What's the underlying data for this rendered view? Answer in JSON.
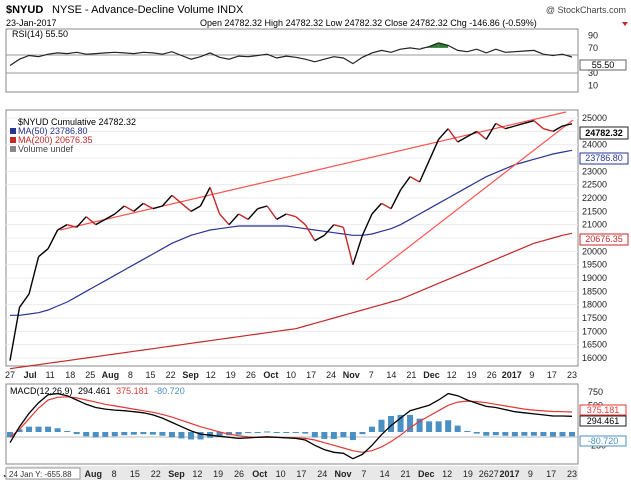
{
  "header": {
    "symbol": "$NYUD",
    "name": "NYSE - Advance-Decline Volume INDX",
    "date": "23-Jan-2017",
    "quote": "Open 24782.32  High 24782.32  Low 24782.32  Close 24782.32  Chg -146.86 (-0.59%)",
    "watermark": "@ StockCharts.com"
  },
  "rsi_panel": {
    "legend": "RSI(14) 55.50",
    "ticks": [
      "90",
      "70",
      "30",
      "10"
    ],
    "current_label": "55.50",
    "line_color": "#222222",
    "overbought_fill": "#2e7d32"
  },
  "price_panel": {
    "legend_main": "$NYUD Cumulative 24782.32",
    "legend_ma50": "MA(50) 23786.80",
    "legend_ma200": "MA(200) 20676.35",
    "legend_volume": "Volume undef",
    "ticks": [
      "25000",
      "24500",
      "24000",
      "23500",
      "23000",
      "22500",
      "22000",
      "21500",
      "21000",
      "20500",
      "20000",
      "19500",
      "19000",
      "18500",
      "18000",
      "17500",
      "17000",
      "16500",
      "16000"
    ],
    "last_label": "24782.32",
    "ma50_label": "23786.80",
    "ma200_label": "20676.35",
    "colors": {
      "ma50": "#283593",
      "ma200": "#c62828",
      "trendline": "#ff5252",
      "price_down": "#c62828"
    }
  },
  "macd_panel": {
    "legend_label": "MACD(12,26,9)",
    "legend_macd": "294.461",
    "legend_signal": "375.181",
    "legend_hist": "-80.720",
    "ticks": [
      "750",
      "500",
      "250",
      "-250"
    ],
    "signal_label": "375.181",
    "macd_label": "294.461",
    "hist_label": "-80.720",
    "colors": {
      "macd": "#000000",
      "signal": "#e53935",
      "histogram": "#4a90c2"
    }
  },
  "x_axis_top": [
    "27",
    "Jul",
    "11",
    "18",
    "25",
    "Aug",
    "8",
    "15",
    "22",
    "Sep",
    "12",
    "19",
    "26",
    "Oct",
    "10",
    "17",
    "24",
    "Nov",
    "7",
    "14",
    "21",
    "Dec",
    "12",
    "19",
    "26",
    "2017",
    "9",
    "17",
    "23"
  ],
  "x_axis_bottom": [
    "Jul",
    "11",
    "18",
    "25",
    "Aug",
    "8",
    "15",
    "22",
    "Sep",
    "12",
    "19",
    "26",
    "Oct",
    "10",
    "17",
    "24",
    "Nov",
    "7",
    "14",
    "21",
    "Dec",
    "12",
    "19",
    "2627",
    "2017",
    "9",
    "17",
    "23"
  ],
  "footer_label": "24 Jan Y: -655.88",
  "chart_data": [
    {
      "type": "line",
      "title": "$NYUD Cumulative",
      "series": [
        {
          "name": "$NYUD Cumulative",
          "values": [
            15900,
            17900,
            18400,
            19800,
            20100,
            20800,
            21000,
            20900,
            21300,
            21000,
            21200,
            21400,
            21700,
            21500,
            21800,
            21600,
            21700,
            22100,
            21800,
            21500,
            21700,
            22400,
            21400,
            21000,
            21400,
            21200,
            21600,
            21700,
            21200,
            21400,
            21300,
            21000,
            20400,
            20600,
            21000,
            20900,
            19500,
            20600,
            21400,
            21800,
            21600,
            22300,
            22800,
            22600,
            23400,
            24200,
            24600,
            24100,
            24300,
            24500,
            24200,
            24800,
            24600,
            24700,
            24800,
            24900,
            24600,
            24500,
            24700,
            24782
          ]
        },
        {
          "name": "MA(50)",
          "values": [
            17600,
            17600,
            17650,
            17700,
            17800,
            17950,
            18100,
            18300,
            18500,
            18700,
            18900,
            19100,
            19300,
            19500,
            19700,
            19900,
            20100,
            20300,
            20450,
            20600,
            20700,
            20800,
            20850,
            20900,
            20950,
            20950,
            20950,
            20950,
            20950,
            20950,
            20900,
            20850,
            20800,
            20750,
            20700,
            20650,
            20600,
            20600,
            20650,
            20750,
            20850,
            21000,
            21200,
            21400,
            21600,
            21800,
            22000,
            22200,
            22400,
            22600,
            22800,
            22950,
            23100,
            23250,
            23350,
            23450,
            23550,
            23650,
            23720,
            23787
          ]
        },
        {
          "name": "MA(200)",
          "values": [
            15600,
            15650,
            15700,
            15750,
            15800,
            15850,
            15900,
            15950,
            16000,
            16050,
            16100,
            16150,
            16200,
            16250,
            16300,
            16350,
            16400,
            16450,
            16500,
            16550,
            16600,
            16650,
            16700,
            16750,
            16800,
            16850,
            16900,
            16950,
            17000,
            17050,
            17100,
            17200,
            17300,
            17400,
            17500,
            17600,
            17700,
            17800,
            17900,
            18000,
            18100,
            18200,
            18350,
            18500,
            18650,
            18800,
            18950,
            19100,
            19250,
            19400,
            19550,
            19700,
            19850,
            20000,
            20150,
            20300,
            20400,
            20500,
            20600,
            20676
          ]
        }
      ],
      "ylim": [
        15700,
        25300
      ]
    },
    {
      "type": "line",
      "title": "RSI(14)",
      "series": [
        {
          "name": "RSI(14)",
          "values": [
            42,
            52,
            58,
            56,
            60,
            62,
            61,
            63,
            60,
            61,
            62,
            63,
            62,
            61,
            63,
            62,
            60,
            64,
            58,
            52,
            56,
            62,
            55,
            52,
            57,
            56,
            58,
            60,
            54,
            57,
            55,
            52,
            48,
            52,
            56,
            54,
            45,
            55,
            62,
            66,
            63,
            68,
            70,
            68,
            72,
            78,
            74,
            66,
            64,
            68,
            62,
            68,
            63,
            64,
            65,
            66,
            60,
            58,
            60,
            55.5
          ]
        }
      ],
      "ylim": [
        0,
        100
      ]
    },
    {
      "type": "line",
      "title": "MACD(12,26,9)",
      "series": [
        {
          "name": "MACD",
          "values": [
            -200,
            100,
            350,
            550,
            700,
            720,
            680,
            600,
            520,
            460,
            430,
            410,
            400,
            380,
            360,
            320,
            260,
            180,
            100,
            20,
            -40,
            -60,
            -80,
            -100,
            -120,
            -110,
            -100,
            -90,
            -100,
            -110,
            -120,
            -150,
            -250,
            -330,
            -380,
            -400,
            -500,
            -420,
            -250,
            -50,
            120,
            260,
            400,
            450,
            500,
            600,
            720,
            680,
            600,
            540,
            480,
            460,
            420,
            380,
            360,
            340,
            320,
            300,
            300,
            294.461
          ]
        },
        {
          "name": "Signal",
          "values": [
            -100,
            50,
            250,
            450,
            600,
            650,
            660,
            640,
            600,
            560,
            520,
            490,
            460,
            430,
            400,
            370,
            330,
            280,
            220,
            160,
            100,
            50,
            0,
            -40,
            -70,
            -90,
            -100,
            -100,
            -100,
            -105,
            -110,
            -120,
            -150,
            -200,
            -250,
            -300,
            -350,
            -380,
            -350,
            -280,
            -180,
            -60,
            80,
            200,
            300,
            400,
            500,
            560,
            580,
            570,
            550,
            520,
            490,
            460,
            430,
            410,
            395,
            385,
            380,
            375.181
          ]
        }
      ],
      "ylim": [
        -600,
        900
      ]
    }
  ]
}
